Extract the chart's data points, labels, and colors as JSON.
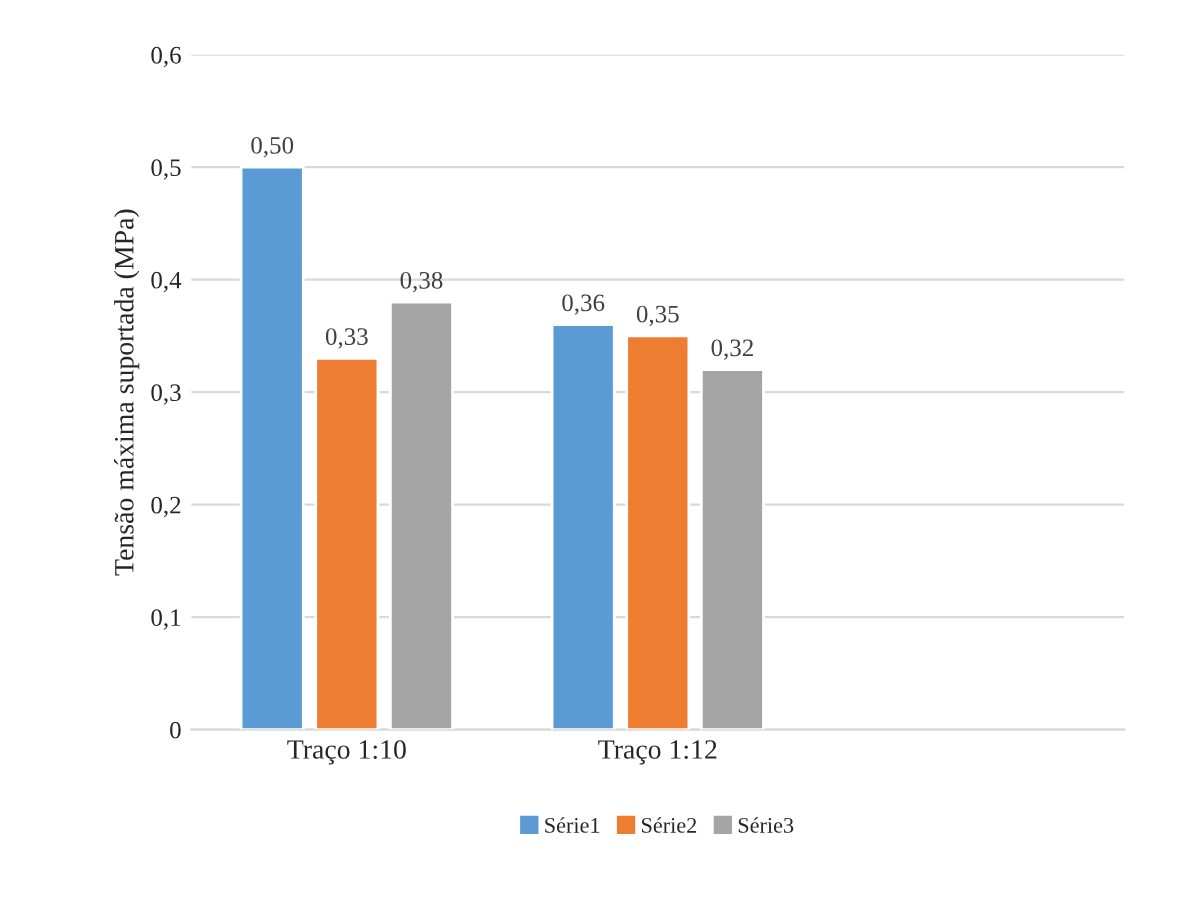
{
  "chart_data": {
    "type": "bar",
    "ylabel": "Tensão máxima suportada (MPa)",
    "categories": [
      "Traço 1:10",
      "Traço 1:12",
      null
    ],
    "series": [
      {
        "name": "Série1",
        "color": "#5b9bd5",
        "values": [
          0.5,
          0.36,
          null
        ],
        "value_labels": [
          "0,50",
          "0,36",
          null
        ]
      },
      {
        "name": "Série2",
        "color": "#ed7d31",
        "values": [
          0.33,
          0.35,
          null
        ],
        "value_labels": [
          "0,33",
          "0,35",
          null
        ]
      },
      {
        "name": "Série3",
        "color": "#a5a5a5",
        "values": [
          0.38,
          0.32,
          null
        ],
        "value_labels": [
          "0,38",
          "0,32",
          null
        ]
      }
    ],
    "ylim": [
      0,
      0.6
    ],
    "yticks": [
      0,
      {
        "value": 0.1,
        "label": "0,1"
      },
      {
        "value": 0.2,
        "label": "0,2"
      },
      {
        "value": 0.3,
        "label": "0,3"
      },
      {
        "value": 0.4,
        "label": "0,4"
      },
      {
        "value": 0.5,
        "label": "0,5"
      },
      {
        "value": 0.6,
        "label": "0,6"
      }
    ],
    "grid": "y",
    "legend": "bottom"
  }
}
